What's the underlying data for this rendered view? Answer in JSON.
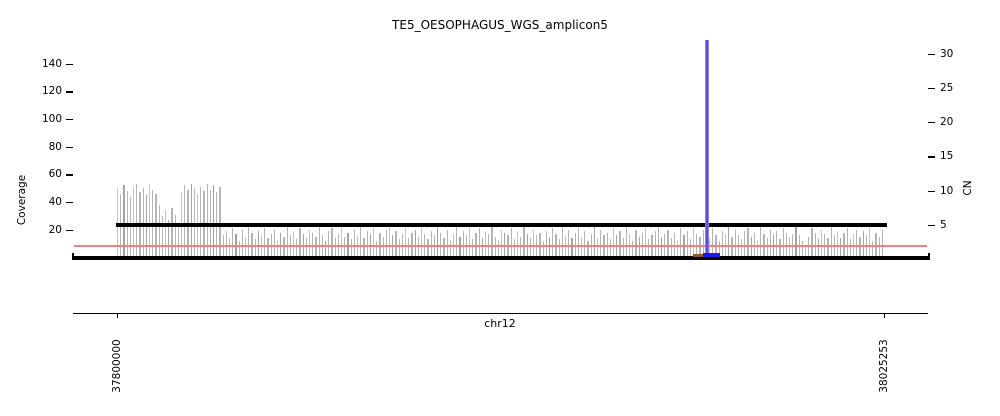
{
  "title": "TE5_OESOPHAGUS_WGS_amplicon5",
  "axes": {
    "left": {
      "label": "Coverage",
      "ticks": [
        20,
        40,
        60,
        80,
        100,
        120,
        140
      ]
    },
    "right": {
      "label": "CN",
      "ticks": [
        5,
        10,
        15,
        20,
        25,
        30
      ]
    },
    "bottom": {
      "label": "chr12",
      "tick_labels": [
        "37800000",
        "38025253"
      ]
    }
  },
  "chart_data": {
    "type": "bar",
    "title": "TE5_OESOPHAGUS_WGS_amplicon5",
    "xlabel": "chr12",
    "ylabel": "Coverage",
    "ylabel_right": "CN",
    "x_range": [
      37800000,
      38025253
    ],
    "ylim_left": [
      0,
      155
    ],
    "ylim_right": [
      0,
      32
    ],
    "grid": false,
    "legend": "none",
    "bar_color": "#b4b4b4",
    "coverage_window_values": [
      50,
      46,
      52,
      48,
      44,
      51,
      53,
      47,
      50,
      45,
      52,
      49,
      46,
      38,
      30,
      34,
      27,
      36,
      31,
      25,
      47,
      52,
      49,
      53,
      50,
      46,
      51,
      48,
      53,
      49,
      52,
      47,
      51,
      16,
      19,
      14,
      21,
      17,
      12,
      20,
      15,
      22,
      18,
      13,
      19,
      16,
      21,
      14,
      17,
      20,
      12,
      18,
      15,
      22,
      16,
      19,
      13,
      21,
      17,
      14,
      20,
      18,
      15,
      23,
      16,
      12,
      19,
      21,
      14,
      17,
      22,
      15,
      18,
      13,
      20,
      16,
      22,
      14,
      19,
      17,
      21,
      12,
      18,
      15,
      20,
      23,
      16,
      19,
      13,
      17,
      21,
      14,
      18,
      20,
      15,
      22,
      17,
      13,
      19,
      16,
      21,
      18,
      14,
      20,
      12,
      17,
      23,
      15,
      19,
      16,
      22,
      13,
      18,
      21,
      14,
      19,
      17,
      22,
      15,
      12,
      20,
      18,
      16,
      21,
      13,
      19,
      15,
      23,
      17,
      14,
      20,
      16,
      18,
      12,
      19,
      15,
      21,
      17,
      13,
      22,
      16,
      20,
      14,
      18,
      21,
      15,
      19,
      12,
      17,
      23,
      14,
      20,
      16,
      18,
      13,
      21,
      16,
      19,
      14,
      22,
      17,
      12,
      20,
      15,
      18,
      21,
      13,
      16,
      19,
      23,
      15,
      17,
      20,
      14,
      18,
      12,
      21,
      16,
      19,
      13,
      22,
      17,
      15,
      20,
      18,
      14,
      21,
      16,
      12,
      19,
      17,
      23,
      15,
      20,
      16,
      13,
      19,
      21,
      15,
      18,
      12,
      22,
      17,
      14,
      20,
      16,
      19,
      13,
      21,
      18,
      15,
      17,
      22,
      16,
      12,
      8,
      15,
      21,
      18,
      13,
      20,
      17,
      14,
      22,
      16,
      19,
      14,
      18,
      21,
      13,
      17,
      20,
      15,
      19,
      16,
      22,
      12,
      18,
      15,
      20
    ],
    "cn_segment": {
      "cn": 5,
      "start_frac": 0.0,
      "end_frac": 1.0,
      "color": "#000000"
    },
    "reference_line": {
      "cn": 2,
      "color": "#f08080"
    },
    "baseline": {
      "cn": 0,
      "color": "#000000"
    },
    "amplicon_spike": {
      "cn": 32,
      "pos_frac": 0.768,
      "color_edge": "#a29af0",
      "color_core": "#584bd8"
    },
    "bottom_segments": [
      {
        "name": "segment-brown",
        "start_frac": 0.75,
        "end_frac": 0.763,
        "color": "#945822"
      },
      {
        "name": "segment-blue",
        "start_frac": 0.763,
        "end_frac": 0.785,
        "color": "#1a1aee"
      }
    ]
  }
}
